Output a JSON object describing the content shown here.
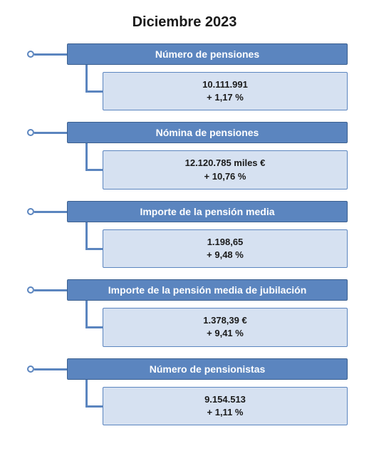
{
  "title": "Diciembre 2023",
  "colors": {
    "bullet_border": "#5b85bf",
    "connector": "#5b85bf",
    "header_bg": "#5b85bf",
    "header_border": "#3a5f8f",
    "header_text": "#ffffff",
    "data_bg": "#d6e1f1",
    "data_border": "#5b85bf",
    "data_text": "#1a1a1a",
    "title_text": "#1a1a1a",
    "bullet_fill": "#ffffff"
  },
  "title_fontsize": 20,
  "header_fontsize": 14,
  "data_fontsize": 13,
  "sections": [
    {
      "header": "Número de pensiones",
      "line1": "10.111.991",
      "line2": "+ 1,17 %"
    },
    {
      "header": "Nómina de pensiones",
      "line1": "12.120.785   miles €",
      "line2": "+ 10,76 %"
    },
    {
      "header": "Importe de la pensión media",
      "line1": "1.198,65",
      "line2": "+ 9,48 %"
    },
    {
      "header": "Importe de la pensión media de jubilación",
      "line1": "1.378,39 €",
      "line2": "+ 9,41 %"
    },
    {
      "header": "Número de pensionistas",
      "line1": "9.154.513",
      "line2": "+ 1,11 %"
    }
  ]
}
